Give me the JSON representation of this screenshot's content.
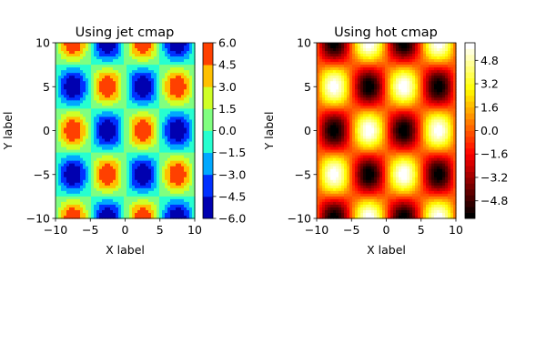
{
  "chart_data": [
    {
      "type": "heatmap",
      "subtype": "filled-contour",
      "title": "Using jet cmap",
      "xlabel": "X label",
      "ylabel": "Y label",
      "xlim": [
        -10,
        10
      ],
      "ylim": [
        -10,
        10
      ],
      "x_ticks": [
        -10,
        -5,
        0,
        5,
        10
      ],
      "y_ticks": [
        -10,
        -5,
        0,
        5,
        10
      ],
      "x_tick_labels": [
        "−10",
        "−5",
        "0",
        "5",
        "10"
      ],
      "y_tick_labels": [
        "−10",
        "−5",
        "0",
        "5",
        "10"
      ],
      "function": "z = 6 * sin(2*pi*x/10) * cos(2*pi*y/10)",
      "z_range": [
        -6,
        6
      ],
      "colormap": "jet",
      "levels": [
        -6.0,
        -4.5,
        -3.0,
        -1.5,
        0.0,
        1.5,
        3.0,
        4.5,
        6.0
      ],
      "level_colors": [
        "#0000b0",
        "#0030ff",
        "#00a8ff",
        "#26ffd0",
        "#80ff80",
        "#d0ff26",
        "#ffc000",
        "#ff4000",
        "#c00000"
      ],
      "colorbar_ticks": [
        -6.0,
        -4.5,
        -3.0,
        -1.5,
        0.0,
        1.5,
        3.0,
        4.5,
        6.0
      ],
      "colorbar_tick_labels": [
        "−6.0",
        "−4.5",
        "−3.0",
        "−1.5",
        "0.0",
        "1.5",
        "3.0",
        "4.5",
        "6.0"
      ],
      "grid": false
    },
    {
      "type": "heatmap",
      "subtype": "filled-contour",
      "title": "Using hot cmap",
      "xlabel": "X label",
      "ylabel": "Y label",
      "xlim": [
        -10,
        10
      ],
      "ylim": [
        -10,
        10
      ],
      "x_ticks": [
        -10,
        -5,
        0,
        5,
        10
      ],
      "y_ticks": [
        -10,
        -5,
        0,
        5,
        10
      ],
      "x_tick_labels": [
        "−10",
        "−5",
        "0",
        "5",
        "10"
      ],
      "y_tick_labels": [
        "−10",
        "−5",
        "0",
        "5",
        "10"
      ],
      "function": "z = -6 * sin(2*pi*x/10) * cos(2*pi*y/10)",
      "z_range": [
        -6,
        6
      ],
      "colormap": "hot",
      "levels": [
        -6.0,
        -5.6,
        -5.2,
        -4.8,
        -4.4,
        -4.0,
        -3.6,
        -3.2,
        -2.8,
        -2.4,
        -2.0,
        -1.6,
        -1.2,
        -0.8,
        -0.4,
        0.0,
        0.4,
        0.8,
        1.2,
        1.6,
        2.0,
        2.4,
        2.8,
        3.2,
        3.6,
        4.0,
        4.4,
        4.8,
        5.2,
        5.6,
        6.0
      ],
      "colorbar_ticks": [
        -4.8,
        -3.2,
        -1.6,
        0.0,
        1.6,
        3.2,
        4.8
      ],
      "colorbar_tick_labels": [
        "−4.8",
        "−3.2",
        "−1.6",
        "0.0",
        "1.6",
        "3.2",
        "4.8"
      ],
      "grid": false
    }
  ]
}
